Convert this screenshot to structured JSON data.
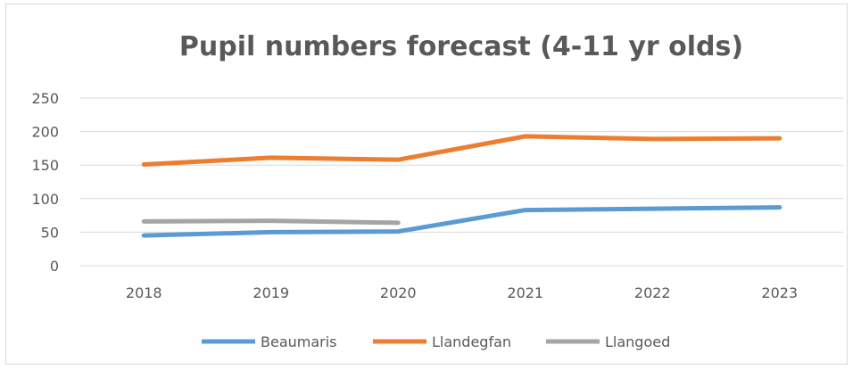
{
  "chart_data": {
    "type": "line",
    "title": "Pupil numbers forecast (4-11 yr olds)",
    "xlabel": "",
    "ylabel": "",
    "categories": [
      "2018",
      "2019",
      "2020",
      "2021",
      "2022",
      "2023"
    ],
    "ylim": [
      0,
      250
    ],
    "yticks": [
      0,
      50,
      100,
      150,
      200,
      250
    ],
    "grid": true,
    "legend_position": "bottom",
    "series": [
      {
        "name": "Beaumaris",
        "color": "#5b9bd5",
        "values": [
          45,
          50,
          51,
          83,
          85,
          87
        ]
      },
      {
        "name": "Llandegfan",
        "color": "#ed7d31",
        "values": [
          151,
          161,
          158,
          193,
          189,
          190
        ]
      },
      {
        "name": "Llangoed",
        "color": "#a5a5a5",
        "values": [
          66,
          67,
          64,
          null,
          null,
          null
        ]
      }
    ]
  }
}
